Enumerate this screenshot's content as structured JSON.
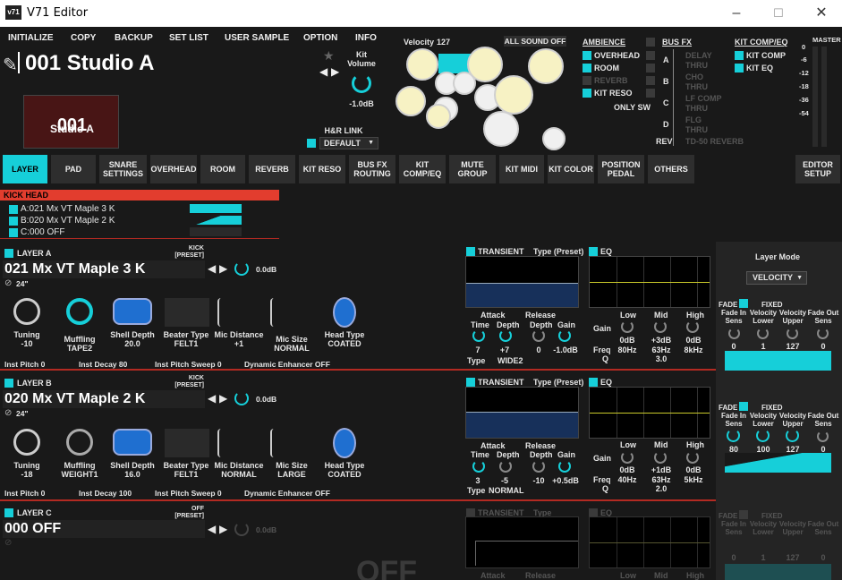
{
  "window": {
    "title": "V71 Editor",
    "app_icon_text": "v71",
    "minimize": "–",
    "maximize": "☐",
    "close": "✕"
  },
  "menu": [
    "INITIALIZE",
    "COPY",
    "BACKUP",
    "SET LIST",
    "USER SAMPLE",
    "OPTION",
    "INFO"
  ],
  "kit": {
    "name": "001 Studio A",
    "thumb_number": "001",
    "thumb_name": "Studio A",
    "volume_label": "Kit\nVolume",
    "volume_value": "-1.0dB",
    "hr_link_label": "H&R LINK",
    "hr_link_value": "DEFAULT"
  },
  "velocity": {
    "label": "Velocity",
    "value": "127"
  },
  "all_sound_off": "ALL SOUND OFF",
  "ambience": {
    "title": "AMBIENCE",
    "items": [
      {
        "label": "OVERHEAD",
        "on": true
      },
      {
        "label": "ROOM",
        "on": true
      },
      {
        "label": "REVERB",
        "on": false
      },
      {
        "label": "KIT RESO",
        "on": true
      }
    ],
    "only_sw": "ONLY SW"
  },
  "bus_fx": {
    "title": "BUS FX",
    "rows": [
      {
        "bus": "A",
        "items": [
          "DELAY",
          "THRU"
        ]
      },
      {
        "bus": "B",
        "items": [
          "CHO",
          "THRU"
        ]
      },
      {
        "bus": "C",
        "items": [
          "LF COMP",
          "THRU"
        ]
      },
      {
        "bus": "D",
        "items": [
          "FLG",
          "THRU"
        ]
      },
      {
        "bus": "REV",
        "items": [
          "TD-50 REVERB"
        ]
      }
    ]
  },
  "kit_comp_eq": {
    "title": "KIT COMP/EQ",
    "items": [
      "KIT COMP",
      "KIT EQ"
    ]
  },
  "master": {
    "title": "MASTER",
    "scale": [
      "0",
      "-6",
      "-12",
      "-18",
      "-36",
      "-54"
    ]
  },
  "tabs": [
    "LAYER",
    "PAD",
    "SNARE\nSETTINGS",
    "OVERHEAD",
    "ROOM",
    "REVERB",
    "KIT RESO",
    "BUS FX\nROUTING",
    "KIT\nCOMP/EQ",
    "MUTE\nGROUP",
    "KIT MIDI",
    "KIT COLOR",
    "POSITION\nPEDAL",
    "OTHERS",
    "EDITOR\nSETUP"
  ],
  "pad_header": "KICK HEAD",
  "layer_list": [
    "A:021 Mx VT Maple 3 K",
    "B:020 Mx VT Maple 2 K",
    "C:000 OFF"
  ],
  "layers": [
    {
      "label": "LAYER A",
      "category": "KICK\n[PRESET]",
      "name": "021 Mx VT Maple 3 K",
      "level": "0.0dB",
      "size": "24\"",
      "params": [
        {
          "label": "Tuning",
          "value": "-10"
        },
        {
          "label": "Muffling",
          "value": "TAPE2"
        },
        {
          "label": "Shell Depth",
          "value": "20.0"
        },
        {
          "label": "Beater Type",
          "value": "FELT1"
        },
        {
          "label": "Mic Distance",
          "value": "+1"
        },
        {
          "label": "Mic Size",
          "value": "NORMAL"
        },
        {
          "label": "Head Type",
          "value": "COATED"
        }
      ],
      "bottom": {
        "inst_pitch": "Inst Pitch  0",
        "inst_decay": "Inst Decay  80",
        "pitch_sweep": "Inst Pitch Sweep  0",
        "dyn": "Dynamic Enhancer   OFF"
      },
      "transient": {
        "title": "TRANSIENT",
        "type_label": "Type (Preset)",
        "attack": "Attack",
        "release": "Release",
        "time_l": "Time",
        "depth_l": "Depth",
        "depth2_l": "Depth",
        "gain_l": "Gain",
        "time": "7",
        "depth": "+7",
        "rdepth": "0",
        "gain": "-1.0dB",
        "type_row_label": "Type",
        "type": "WIDE2"
      },
      "eq": {
        "title": "EQ",
        "low": "Low",
        "mid": "Mid",
        "high": "High",
        "gain_l": "Gain",
        "freq_l": "Freq",
        "q_l": "Q",
        "low_gain": "0dB",
        "mid_gain": "+3dB",
        "high_gain": "0dB",
        "low_freq": "80Hz",
        "mid_freq": "63Hz",
        "high_freq": "8kHz",
        "q": "3.0"
      }
    },
    {
      "label": "LAYER B",
      "category": "KICK\n[PRESET]",
      "name": "020 Mx VT Maple 2 K",
      "level": "0.0dB",
      "size": "24\"",
      "params": [
        {
          "label": "Tuning",
          "value": "-18"
        },
        {
          "label": "Muffling",
          "value": "WEIGHT1"
        },
        {
          "label": "Shell Depth",
          "value": "16.0"
        },
        {
          "label": "Beater Type",
          "value": "FELT1"
        },
        {
          "label": "Mic Distance",
          "value": "NORMAL"
        },
        {
          "label": "Mic Size",
          "value": "LARGE"
        },
        {
          "label": "Head Type",
          "value": "COATED"
        }
      ],
      "bottom": {
        "inst_pitch": "Inst Pitch  0",
        "inst_decay": "Inst Decay  100",
        "pitch_sweep": "Inst Pitch Sweep  0",
        "dyn": "Dynamic Enhancer   OFF"
      },
      "transient": {
        "title": "TRANSIENT",
        "type_label": "Type (Preset)",
        "attack": "Attack",
        "release": "Release",
        "time_l": "Time",
        "depth_l": "Depth",
        "depth2_l": "Depth",
        "gain_l": "Gain",
        "time": "3",
        "depth": "-5",
        "rdepth": "-10",
        "gain": "+0.5dB",
        "type_row_label": "Type",
        "type": "NORMAL"
      },
      "eq": {
        "title": "EQ",
        "low": "Low",
        "mid": "Mid",
        "high": "High",
        "gain_l": "Gain",
        "freq_l": "Freq",
        "q_l": "Q",
        "low_gain": "0dB",
        "mid_gain": "+1dB",
        "high_gain": "0dB",
        "low_freq": "40Hz",
        "mid_freq": "63Hz",
        "high_freq": "5kHz",
        "q": "2.0"
      }
    },
    {
      "label": "LAYER C",
      "category": "OFF\n[PRESET]",
      "name": "000 OFF",
      "level": "0.0dB",
      "transient": {
        "title": "TRANSIENT",
        "type_label": "Type",
        "attack": "Attack",
        "release": "Release"
      },
      "eq": {
        "title": "EQ",
        "low": "Low",
        "mid": "Mid",
        "high": "High"
      },
      "overlay": "OFF"
    }
  ],
  "layer_mode": {
    "title": "Layer Mode",
    "value": "VELOCITY"
  },
  "fades": [
    {
      "fade": "FADE",
      "fixed": "FIXED",
      "headers": [
        "Fade In\nSens",
        "Velocity\nLower",
        "Velocity\nUpper",
        "Fade Out\nSens"
      ],
      "values": [
        "0",
        "1",
        "127",
        "0"
      ]
    },
    {
      "fade": "FADE",
      "fixed": "FIXED",
      "headers": [
        "Fade In\nSens",
        "Velocity\nLower",
        "Velocity\nUpper",
        "Fade Out\nSens"
      ],
      "values": [
        "80",
        "100",
        "127",
        "0"
      ]
    },
    {
      "fade": "FADE",
      "fixed": "FIXED",
      "headers": [
        "Fade In\nSens",
        "Velocity\nLower",
        "Velocity\nUpper",
        "Fade Out\nSens"
      ],
      "values": [
        "0",
        "1",
        "127",
        "0"
      ]
    }
  ],
  "colors": {
    "accent": "#16cfd9",
    "red": "#e23d2e",
    "bg": "#191919"
  }
}
